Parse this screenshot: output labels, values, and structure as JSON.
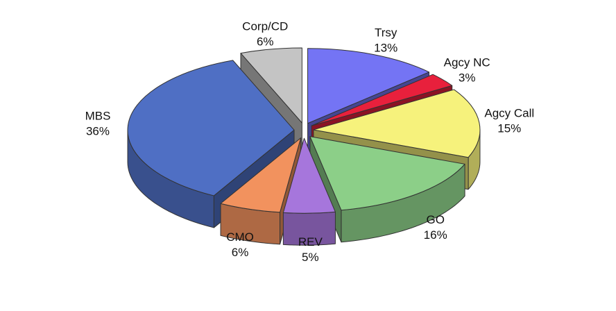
{
  "chart_data": {
    "type": "pie",
    "categories": [
      "Trsy",
      "Agcy NC",
      "Agcy Call",
      "GO",
      "REV",
      "CMO",
      "MBS",
      "Corp/CD"
    ],
    "values": [
      13,
      3,
      15,
      16,
      5,
      6,
      36,
      6
    ],
    "value_labels": [
      "13%",
      "3%",
      "15%",
      "16%",
      "5%",
      "6%",
      "36%",
      "6%"
    ],
    "colors": [
      "#7474f4",
      "#e8203c",
      "#f6f27c",
      "#8ccf88",
      "#a676dc",
      "#f2925e",
      "#4f6fc4",
      "#c4c4c4"
    ]
  }
}
